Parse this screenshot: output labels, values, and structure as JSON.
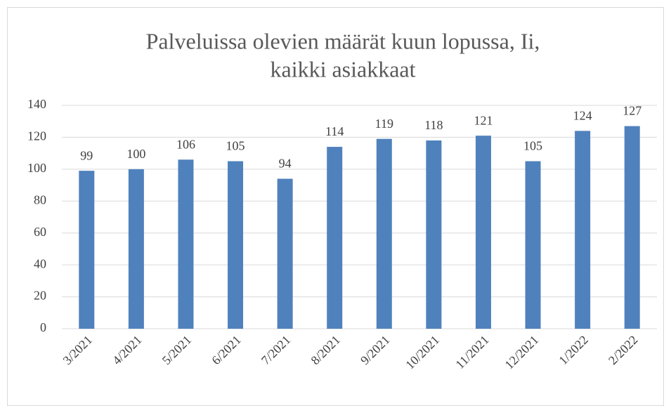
{
  "chart_data": {
    "type": "bar",
    "title": [
      "Palveluissa olevien määrät kuun lopussa, Ii,",
      "kaikki asiakkaat"
    ],
    "categories": [
      "3/2021",
      "4/2021",
      "5/2021",
      "6/2021",
      "7/2021",
      "8/2021",
      "9/2021",
      "10/2021",
      "11/2021",
      "12/2021",
      "1/2022",
      "2/2022"
    ],
    "values": [
      99,
      100,
      106,
      105,
      94,
      114,
      119,
      118,
      121,
      105,
      124,
      127
    ],
    "color": "#4f81bd",
    "ylim": [
      0,
      140
    ],
    "yticks": [
      0,
      20,
      40,
      60,
      80,
      100,
      120,
      140
    ],
    "grid": true
  }
}
